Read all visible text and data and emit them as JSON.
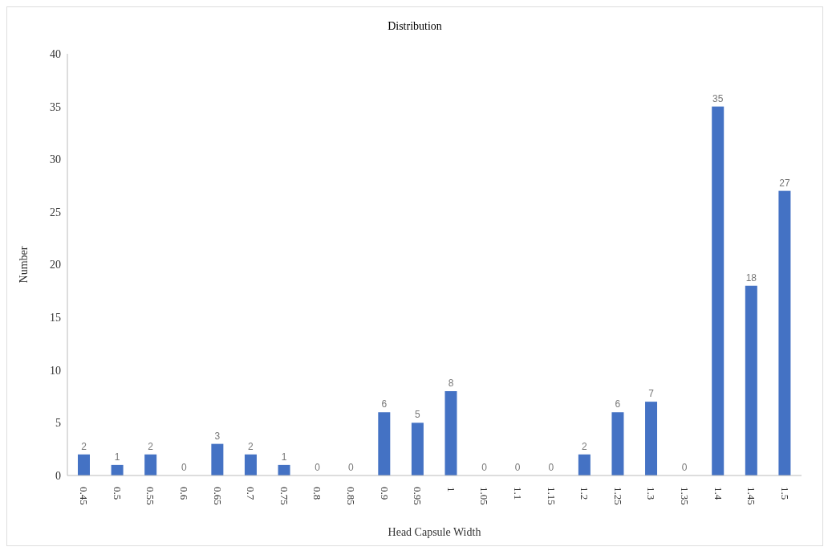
{
  "chart_data": {
    "type": "bar",
    "title": "Distribution",
    "xlabel": "Head Capsule Width",
    "ylabel": "Number",
    "categories": [
      "0.45",
      "0.5",
      "0.55",
      "0.6",
      "0.65",
      "0.7",
      "0.75",
      "0.8",
      "0.85",
      "0.9",
      "0.95",
      "1",
      "1.05",
      "1.1",
      "1.15",
      "1.2",
      "1.25",
      "1.3",
      "1.35",
      "1.4",
      "1.45",
      "1.5"
    ],
    "values": [
      2,
      1,
      2,
      0,
      3,
      2,
      1,
      0,
      0,
      6,
      5,
      8,
      0,
      0,
      0,
      2,
      6,
      7,
      0,
      35,
      18,
      27
    ],
    "color": "#4472c4",
    "ylim": [
      0,
      40
    ],
    "yticks": [
      0,
      5,
      10,
      15,
      20,
      25,
      30,
      35,
      40
    ],
    "grid": false,
    "data_labels": true
  }
}
